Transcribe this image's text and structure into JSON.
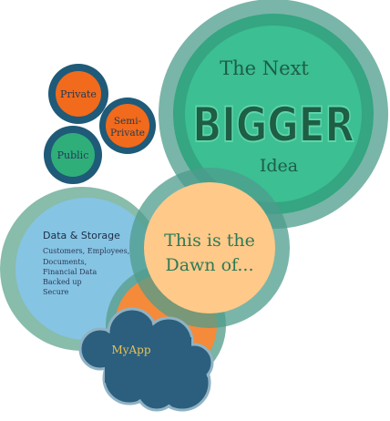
{
  "colors": {
    "dark_blue": "#1f5a78",
    "orange": "#f26a1b",
    "green": "#2fae7a",
    "teal_ring": "#4e9c8c",
    "big_green": "#3cbf92",
    "big_ring": "#35a582",
    "light_blue": "#86c4e4",
    "peach": "#ffc98a",
    "text_dark_green": "#1d5e45",
    "cloud": "#2c5f7d",
    "myapp_text": "#e8c25a"
  },
  "bubbles": {
    "private": {
      "label": "Private"
    },
    "semi_private": {
      "label_line1": "Semi-",
      "label_line2": "Private"
    },
    "public": {
      "label": "Public"
    }
  },
  "idea": {
    "line1": "The Next",
    "line2": "BIGGER",
    "line3": "Idea"
  },
  "dawn": {
    "line1": "This is the",
    "line2": "Dawn of..."
  },
  "storage": {
    "title": "Data & Storage",
    "items": [
      "Customers, Employees,",
      "Documents,",
      "Financial Data",
      "Backed up",
      "Secure"
    ]
  },
  "cloud": {
    "label": "MyApp"
  }
}
